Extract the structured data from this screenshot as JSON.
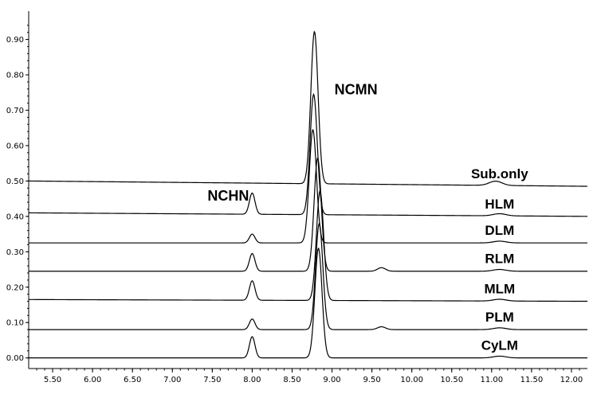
{
  "chart_data": {
    "type": "line",
    "title": "",
    "xlabel": "",
    "ylabel": "",
    "xlim": [
      5.2,
      12.2
    ],
    "ylim": [
      -0.03,
      0.98
    ],
    "x_ticks": [
      "5.50",
      "6.00",
      "6.50",
      "7.00",
      "7.50",
      "8.00",
      "8.50",
      "9.00",
      "9.50",
      "10.00",
      "10.50",
      "11.00",
      "11.50",
      "12.00"
    ],
    "y_ticks": [
      "0.00",
      "0.10",
      "0.20",
      "0.30",
      "0.40",
      "0.50",
      "0.60",
      "0.70",
      "0.80",
      "0.90"
    ],
    "grid": false,
    "annotations": [
      {
        "text": "NCHN",
        "x": 7.7,
        "y": 0.445
      },
      {
        "text": "NCMN",
        "x": 9.3,
        "y": 0.745
      }
    ],
    "series": [
      {
        "name": "Sub.only",
        "baseline": 0.5,
        "end_baseline": 0.485,
        "peaks": [
          {
            "x": 8.78,
            "height": 0.43,
            "width": 0.045
          },
          {
            "x": 11.05,
            "height": 0.012,
            "width": 0.08
          }
        ]
      },
      {
        "name": "HLM",
        "baseline": 0.41,
        "end_baseline": 0.4,
        "peaks": [
          {
            "x": 8.0,
            "height": 0.06,
            "width": 0.035
          },
          {
            "x": 8.77,
            "height": 0.34,
            "width": 0.045
          },
          {
            "x": 11.1,
            "height": 0.006,
            "width": 0.08
          }
        ]
      },
      {
        "name": "DLM",
        "baseline": 0.325,
        "end_baseline": 0.325,
        "peaks": [
          {
            "x": 8.0,
            "height": 0.025,
            "width": 0.035
          },
          {
            "x": 8.76,
            "height": 0.32,
            "width": 0.045
          },
          {
            "x": 11.1,
            "height": 0.005,
            "width": 0.08
          }
        ]
      },
      {
        "name": "RLM",
        "baseline": 0.245,
        "end_baseline": 0.245,
        "peaks": [
          {
            "x": 8.0,
            "height": 0.05,
            "width": 0.035
          },
          {
            "x": 8.82,
            "height": 0.32,
            "width": 0.045
          },
          {
            "x": 9.62,
            "height": 0.01,
            "width": 0.05
          },
          {
            "x": 11.1,
            "height": 0.005,
            "width": 0.08
          }
        ]
      },
      {
        "name": "MLM",
        "baseline": 0.165,
        "end_baseline": 0.16,
        "peaks": [
          {
            "x": 8.0,
            "height": 0.055,
            "width": 0.035
          },
          {
            "x": 8.85,
            "height": 0.31,
            "width": 0.045
          },
          {
            "x": 11.1,
            "height": 0.005,
            "width": 0.08
          }
        ]
      },
      {
        "name": "PLM",
        "baseline": 0.08,
        "end_baseline": 0.08,
        "peaks": [
          {
            "x": 8.0,
            "height": 0.03,
            "width": 0.035
          },
          {
            "x": 8.84,
            "height": 0.3,
            "width": 0.045
          },
          {
            "x": 9.62,
            "height": 0.008,
            "width": 0.05
          },
          {
            "x": 11.1,
            "height": 0.005,
            "width": 0.08
          }
        ]
      },
      {
        "name": "CyLM",
        "baseline": 0.0,
        "end_baseline": 0.0,
        "peaks": [
          {
            "x": 8.0,
            "height": 0.06,
            "width": 0.035
          },
          {
            "x": 8.83,
            "height": 0.31,
            "width": 0.045
          },
          {
            "x": 11.1,
            "height": 0.005,
            "width": 0.08
          }
        ]
      }
    ],
    "series_label_x": 11.1
  }
}
